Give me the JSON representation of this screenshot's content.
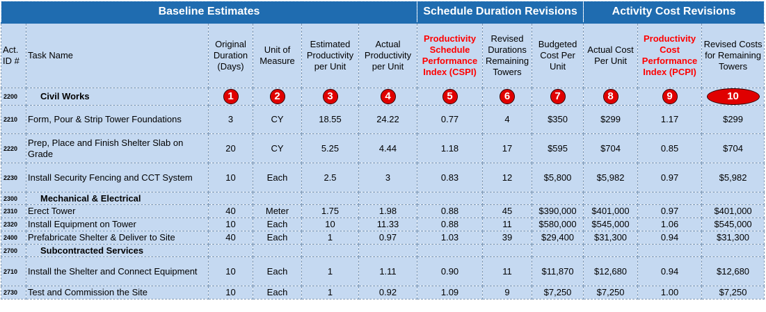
{
  "groups": [
    "Baseline Estimates",
    "Schedule Duration Revisions",
    "Activity Cost Revisions"
  ],
  "headers": [
    "Act. ID #",
    "Task Name",
    "Original Duration (Days)",
    "Unit of Measure",
    "Estimated Productivity per Unit",
    "Actual Productivity per Unit",
    "Productivity Schedule Performance Index (CSPI)",
    "Revised Durations Remaining Towers",
    "Budgeted Cost Per Unit",
    "Actual Cost Per Unit",
    "Productivity Cost Performance Index (PCPI)",
    "Revised Costs for Remaining Towers"
  ],
  "categories": {
    "civil": {
      "id": "2200",
      "name": "Civil Works"
    },
    "mech": {
      "id": "2300",
      "name": "Mechanical & Electrical"
    },
    "sub": {
      "id": "2700",
      "name": "Subcontracted Services"
    }
  },
  "badges": [
    "1",
    "2",
    "3",
    "4",
    "5",
    "6",
    "7",
    "8",
    "9",
    "10"
  ],
  "rows": [
    {
      "id": "2210",
      "name": "Form, Pour & Strip Tower Foundations",
      "dur": "3",
      "uom": "CY",
      "est": "18.55",
      "act": "24.22",
      "cspi": "0.77",
      "rev": "4",
      "bud": "$350",
      "actc": "$299",
      "pcpi": "1.17",
      "revc": "$299"
    },
    {
      "id": "2220",
      "name": "Prep, Place and Finish Shelter Slab on Grade",
      "dur": "20",
      "uom": "CY",
      "est": "5.25",
      "act": "4.44",
      "cspi": "1.18",
      "rev": "17",
      "bud": "$595",
      "actc": "$704",
      "pcpi": "0.85",
      "revc": "$704"
    },
    {
      "id": "2230",
      "name": "Install Security Fencing and CCT System",
      "dur": "10",
      "uom": "Each",
      "est": "2.5",
      "act": "3",
      "cspi": "0.83",
      "rev": "12",
      "bud": "$5,800",
      "actc": "$5,982",
      "pcpi": "0.97",
      "revc": "$5,982"
    },
    {
      "id": "2310",
      "name": "Erect Tower",
      "dur": "40",
      "uom": "Meter",
      "est": "1.75",
      "act": "1.98",
      "cspi": "0.88",
      "rev": "45",
      "bud": "$390,000",
      "actc": "$401,000",
      "pcpi": "0.97",
      "revc": "$401,000"
    },
    {
      "id": "2320",
      "name": "Install Equipment on Tower",
      "dur": "10",
      "uom": "Each",
      "est": "10",
      "act": "11.33",
      "cspi": "0.88",
      "rev": "11",
      "bud": "$580,000",
      "actc": "$545,000",
      "pcpi": "1.06",
      "revc": "$545,000"
    },
    {
      "id": "2400",
      "name": "Prefabricate Shelter & Deliver to Site",
      "dur": "40",
      "uom": "Each",
      "est": "1",
      "act": "0.97",
      "cspi": "1.03",
      "rev": "39",
      "bud": "$29,400",
      "actc": "$31,300",
      "pcpi": "0.94",
      "revc": "$31,300"
    },
    {
      "id": "2710",
      "name": "Install the Shelter and Connect Equipment",
      "dur": "10",
      "uom": "Each",
      "est": "1",
      "act": "1.11",
      "cspi": "0.90",
      "rev": "11",
      "bud": "$11,870",
      "actc": "$12,680",
      "pcpi": "0.94",
      "revc": "$12,680"
    },
    {
      "id": "2730",
      "name": "Test and Commission the Site",
      "dur": "10",
      "uom": "Each",
      "est": "1",
      "act": "0.92",
      "cspi": "1.09",
      "rev": "9",
      "bud": "$7,250",
      "actc": "$7,250",
      "pcpi": "1.00",
      "revc": "$7,250"
    }
  ]
}
